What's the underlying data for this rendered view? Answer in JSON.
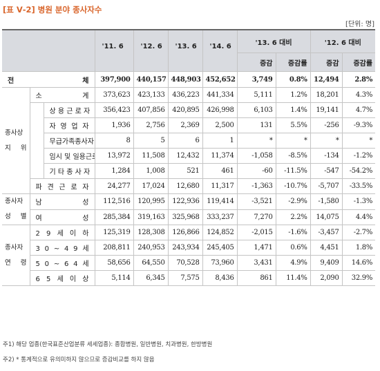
{
  "title": "[표 Ⅴ-2] 병원 분야 종사자수",
  "unit": "[단위: 명]",
  "table": {
    "header": {
      "periods": [
        "'11. 6",
        "'12. 6",
        "'13. 6",
        "'14. 6"
      ],
      "compare": [
        "'13. 6 대비",
        "'12. 6 대비"
      ],
      "sub": [
        "증감",
        "증감률",
        "증감",
        "증감률"
      ]
    },
    "total": {
      "label": "전 체",
      "cells": [
        "397,900",
        "440,157",
        "448,903",
        "452,652",
        "3,749",
        "0.8%",
        "12,494",
        "2.8%"
      ]
    },
    "groups": [
      {
        "label": "종사상 지 위",
        "rows": [
          {
            "label": "소 계",
            "cells": [
              "373,623",
              "423,133",
              "436,223",
              "441,334",
              "5,111",
              "1.2%",
              "18,201",
              "4.3%"
            ]
          },
          {
            "label": "상 용 근 로 자",
            "cells": [
              "356,423",
              "407,856",
              "420,895",
              "426,998",
              "6,103",
              "1.4%",
              "19,141",
              "4.7%"
            ]
          },
          {
            "label": "자 영 업 자",
            "cells": [
              "1,936",
              "2,756",
              "2,369",
              "2,500",
              "131",
              "5.5%",
              "-256",
              "-9.3%"
            ]
          },
          {
            "label": "무급가족종사자",
            "cells": [
              "8",
              "5",
              "6",
              "1",
              "*",
              "*",
              "*",
              "*"
            ]
          },
          {
            "label": "임시 및 일용근로자",
            "cells": [
              "13,972",
              "11,508",
              "12,432",
              "11,374",
              "-1,058",
              "-8.5%",
              "-134",
              "-1.2%"
            ]
          },
          {
            "label": "기 타 종 사 자",
            "cells": [
              "1,284",
              "1,008",
              "521",
              "461",
              "-60",
              "-11.5%",
              "-547",
              "-54.2%"
            ]
          },
          {
            "label": "파 견 근 로 자",
            "cells": [
              "24,277",
              "17,024",
              "12,680",
              "11,317",
              "-1,363",
              "-10.7%",
              "-5,707",
              "-33.5%"
            ]
          }
        ]
      },
      {
        "label": "종사자 성 별",
        "rows": [
          {
            "label": "남 성",
            "cells": [
              "112,516",
              "120,995",
              "122,936",
              "119,414",
              "-3,521",
              "-2.9%",
              "-1,580",
              "-1.3%"
            ]
          },
          {
            "label": "여 성",
            "cells": [
              "285,384",
              "319,163",
              "325,968",
              "333,237",
              "7,270",
              "2.2%",
              "14,075",
              "4.4%"
            ]
          }
        ]
      },
      {
        "label": "종사자 연 령",
        "rows": [
          {
            "label": "2 9 세 이 하",
            "cells": [
              "125,319",
              "128,308",
              "126,866",
              "124,852",
              "-2,015",
              "-1.6%",
              "-3,457",
              "-2.7%"
            ]
          },
          {
            "label": "3 0 ~ 4 9 세",
            "cells": [
              "208,811",
              "240,953",
              "243,934",
              "245,405",
              "1,471",
              "0.6%",
              "4,451",
              "1.8%"
            ]
          },
          {
            "label": "5 0 ~ 6 4 세",
            "cells": [
              "58,656",
              "64,550",
              "70,528",
              "73,960",
              "3,431",
              "4.9%",
              "9,409",
              "14.6%"
            ]
          },
          {
            "label": "6 5 세 이 상",
            "cells": [
              "5,114",
              "6,345",
              "7,575",
              "8,436",
              "861",
              "11.4%",
              "2,090",
              "32.9%"
            ]
          }
        ]
      }
    ]
  },
  "notes": [
    "주1) 해당 업종(한국표준산업분류 세세업종): 종합병원, 일반병원, 치과병원, 한방병원",
    "주2) * 통계적으로 유의미하지 않으므로 증감비교를 하지 않음"
  ]
}
